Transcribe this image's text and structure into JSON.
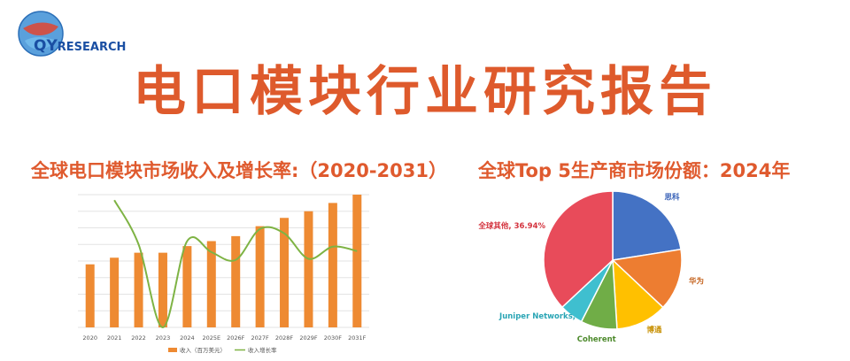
{
  "logo": {
    "brand_qy": "QY",
    "brand_research": "RESEARCH"
  },
  "header": {
    "title": "电口模块行业研究报告"
  },
  "colors": {
    "title_orange": "#de5a2c",
    "bar": "#ee8a32",
    "line": "#7eb344",
    "brand_blue": "#1a4fa3",
    "grid": "#e3e3e3"
  },
  "chart_data": [
    {
      "type": "bar",
      "title": "全球电口模块市场收入及增长率:（2020-2031）",
      "categories": [
        "2020",
        "2021",
        "2022",
        "2023",
        "2024",
        "2025E",
        "2026F",
        "2027F",
        "2028F",
        "2029F",
        "2030F",
        "2031F"
      ],
      "series": [
        {
          "name": "收入（百万美元）",
          "type": "bar",
          "values": [
            38,
            42,
            45,
            45,
            49,
            52,
            55,
            61,
            66,
            70,
            75,
            80
          ]
        },
        {
          "name": "收入增长率",
          "type": "line",
          "values": [
            null,
            11.5,
            7.5,
            0,
            7.8,
            6.8,
            6.1,
            8.9,
            8.5,
            6.2,
            7.3,
            6.9
          ]
        }
      ],
      "ylim": [
        0,
        80
      ],
      "y2lim": [
        0,
        12
      ],
      "grid": true,
      "legend_position": "bottom"
    },
    {
      "type": "pie",
      "title": "全球Top 5生产商市场份额：2024年",
      "slices": [
        {
          "label": "思科",
          "value": 22.5,
          "color": "#4472c4",
          "label_color": "#3a63b8",
          "side": "right"
        },
        {
          "label": "华为",
          "value": 14.5,
          "color": "#ed7d31",
          "label_color": "#c4621d",
          "side": "right"
        },
        {
          "label": "博通",
          "value": 12.0,
          "color": "#ffc000",
          "label_color": "#c78f00",
          "side": "right"
        },
        {
          "label": "Coherent",
          "value": 8.5,
          "color": "#70ad47",
          "label_color": "#4d8a2c",
          "side": "below"
        },
        {
          "label": "Juniper Networks,",
          "value": 5.56,
          "color": "#3fbfcf",
          "label_color": "#2aa5b5",
          "side": "left"
        },
        {
          "label": "全球其他, 36.94%",
          "value": 36.94,
          "color": "#e84b5a",
          "label_color": "#d4343f",
          "side": "left"
        }
      ]
    }
  ]
}
